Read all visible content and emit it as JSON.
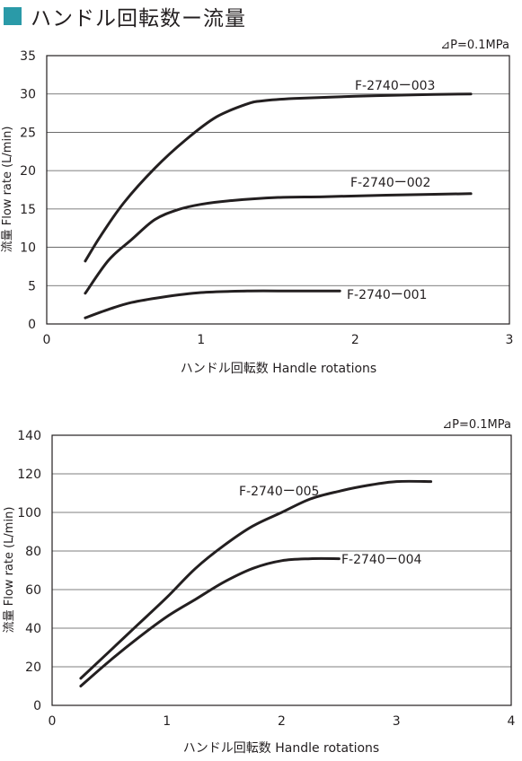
{
  "page": {
    "title": "ハンドル回転数ー流量",
    "accent_color": "#2a9aa8"
  },
  "chart_data": [
    {
      "type": "line",
      "pressure_note": "⊿P=0.1MPa",
      "xlabel": "ハンドル回転数  Handle rotations",
      "ylabel": "流量  Flow rate (L/min)",
      "xlim": [
        0,
        3
      ],
      "ylim": [
        0,
        35
      ],
      "xticks": [
        0,
        1,
        2,
        3
      ],
      "yticks": [
        0,
        5,
        10,
        15,
        20,
        25,
        30,
        35
      ],
      "grid": "horizontal",
      "series": [
        {
          "name": "F-2740ー003",
          "x": [
            0.25,
            0.35,
            0.5,
            0.7,
            0.9,
            1.1,
            1.3,
            1.4,
            1.6,
            2.0,
            2.4,
            2.75
          ],
          "y": [
            8.2,
            11.5,
            15.8,
            20.3,
            24.0,
            27.0,
            28.7,
            29.1,
            29.4,
            29.7,
            29.9,
            30.0
          ]
        },
        {
          "name": "F-2740ー002",
          "x": [
            0.25,
            0.4,
            0.55,
            0.7,
            0.85,
            1.0,
            1.2,
            1.5,
            1.8,
            2.2,
            2.75
          ],
          "y": [
            4.0,
            8.3,
            11.0,
            13.6,
            14.9,
            15.6,
            16.1,
            16.5,
            16.6,
            16.8,
            17.0
          ]
        },
        {
          "name": "F-2740ー001",
          "x": [
            0.25,
            0.4,
            0.55,
            0.75,
            1.0,
            1.3,
            1.6,
            1.9
          ],
          "y": [
            0.8,
            1.9,
            2.8,
            3.5,
            4.1,
            4.3,
            4.3,
            4.3
          ]
        }
      ]
    },
    {
      "type": "line",
      "pressure_note": "⊿P=0.1MPa",
      "xlabel": "ハンドル回転数  Handle rotations",
      "ylabel": "流量  Flow rate (L/min)",
      "xlim": [
        0,
        4
      ],
      "ylim": [
        0,
        140
      ],
      "xticks": [
        0,
        1,
        2,
        3,
        4
      ],
      "yticks": [
        0,
        20,
        40,
        60,
        80,
        100,
        120,
        140
      ],
      "grid": "horizontal",
      "series": [
        {
          "name": "F-2740ー005",
          "x": [
            0.25,
            0.5,
            0.75,
            1.0,
            1.25,
            1.5,
            1.75,
            2.0,
            2.25,
            2.5,
            2.75,
            3.0,
            3.3
          ],
          "y": [
            14,
            28,
            42,
            56,
            71,
            83,
            93,
            100,
            107,
            111,
            114,
            116,
            116
          ]
        },
        {
          "name": "F-2740ー004",
          "x": [
            0.25,
            0.5,
            0.75,
            1.0,
            1.25,
            1.5,
            1.75,
            2.0,
            2.25,
            2.5
          ],
          "y": [
            10,
            23,
            35,
            46,
            55,
            64,
            71,
            75,
            76,
            76
          ]
        }
      ]
    }
  ]
}
